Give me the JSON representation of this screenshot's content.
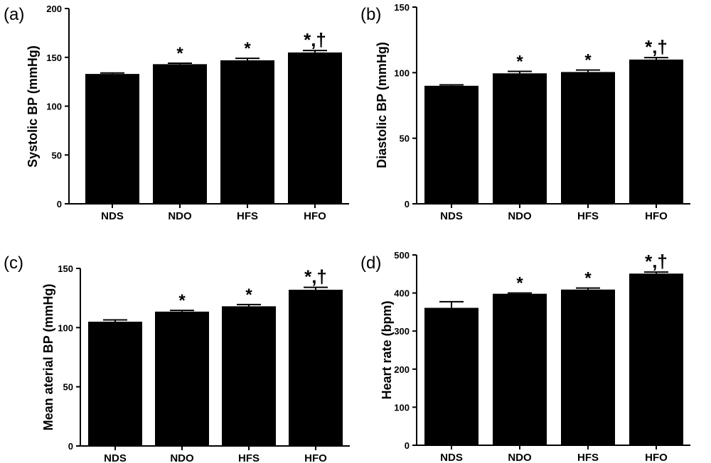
{
  "chart_data": [
    {
      "type": "bar",
      "panel": "(a)",
      "ylabel": "Systolic BP (mmHg)",
      "categories": [
        "NDS",
        "NDO",
        "HFS",
        "HFO"
      ],
      "values": [
        133,
        143,
        147,
        155
      ],
      "errors": [
        1,
        1,
        2,
        2
      ],
      "annotations": [
        "",
        "*",
        "*",
        "*,†"
      ],
      "ylim": [
        0,
        200
      ],
      "yticks": [
        "0",
        "50",
        "100",
        "150",
        "200"
      ],
      "grid": false
    },
    {
      "type": "bar",
      "panel": "(b)",
      "ylabel": "Diastolic BP (mmHg)",
      "categories": [
        "NDS",
        "NDO",
        "HFS",
        "HFO"
      ],
      "values": [
        90,
        99.5,
        100.5,
        110
      ],
      "errors": [
        0.7,
        1.5,
        1.5,
        1.5
      ],
      "annotations": [
        "",
        "*",
        "*",
        "*,†"
      ],
      "ylim": [
        0,
        150
      ],
      "yticks": [
        "0",
        "50",
        "100",
        "150"
      ],
      "grid": false
    },
    {
      "type": "bar",
      "panel": "(c)",
      "ylabel": "Mean aterial BP (mmHg)",
      "categories": [
        "NDS",
        "NDO",
        "HFS",
        "HFO"
      ],
      "values": [
        105,
        113.5,
        118,
        132
      ],
      "errors": [
        1.5,
        1,
        1.5,
        2
      ],
      "annotations": [
        "",
        "*",
        "*",
        "*,†"
      ],
      "ylim": [
        0,
        150
      ],
      "yticks": [
        "0",
        "50",
        "100",
        "150"
      ],
      "grid": false
    },
    {
      "type": "bar",
      "panel": "(d)",
      "ylabel": "Heart rate (bpm)",
      "categories": [
        "NDS",
        "NDO",
        "HFS",
        "HFO"
      ],
      "values": [
        361,
        398,
        409,
        451
      ],
      "errors": [
        16,
        2,
        4,
        4
      ],
      "annotations": [
        "",
        "*",
        "*",
        "*,†"
      ],
      "ylim": [
        0,
        500
      ],
      "yticks": [
        "0",
        "100",
        "200",
        "300",
        "400",
        "500"
      ],
      "grid": false
    }
  ]
}
